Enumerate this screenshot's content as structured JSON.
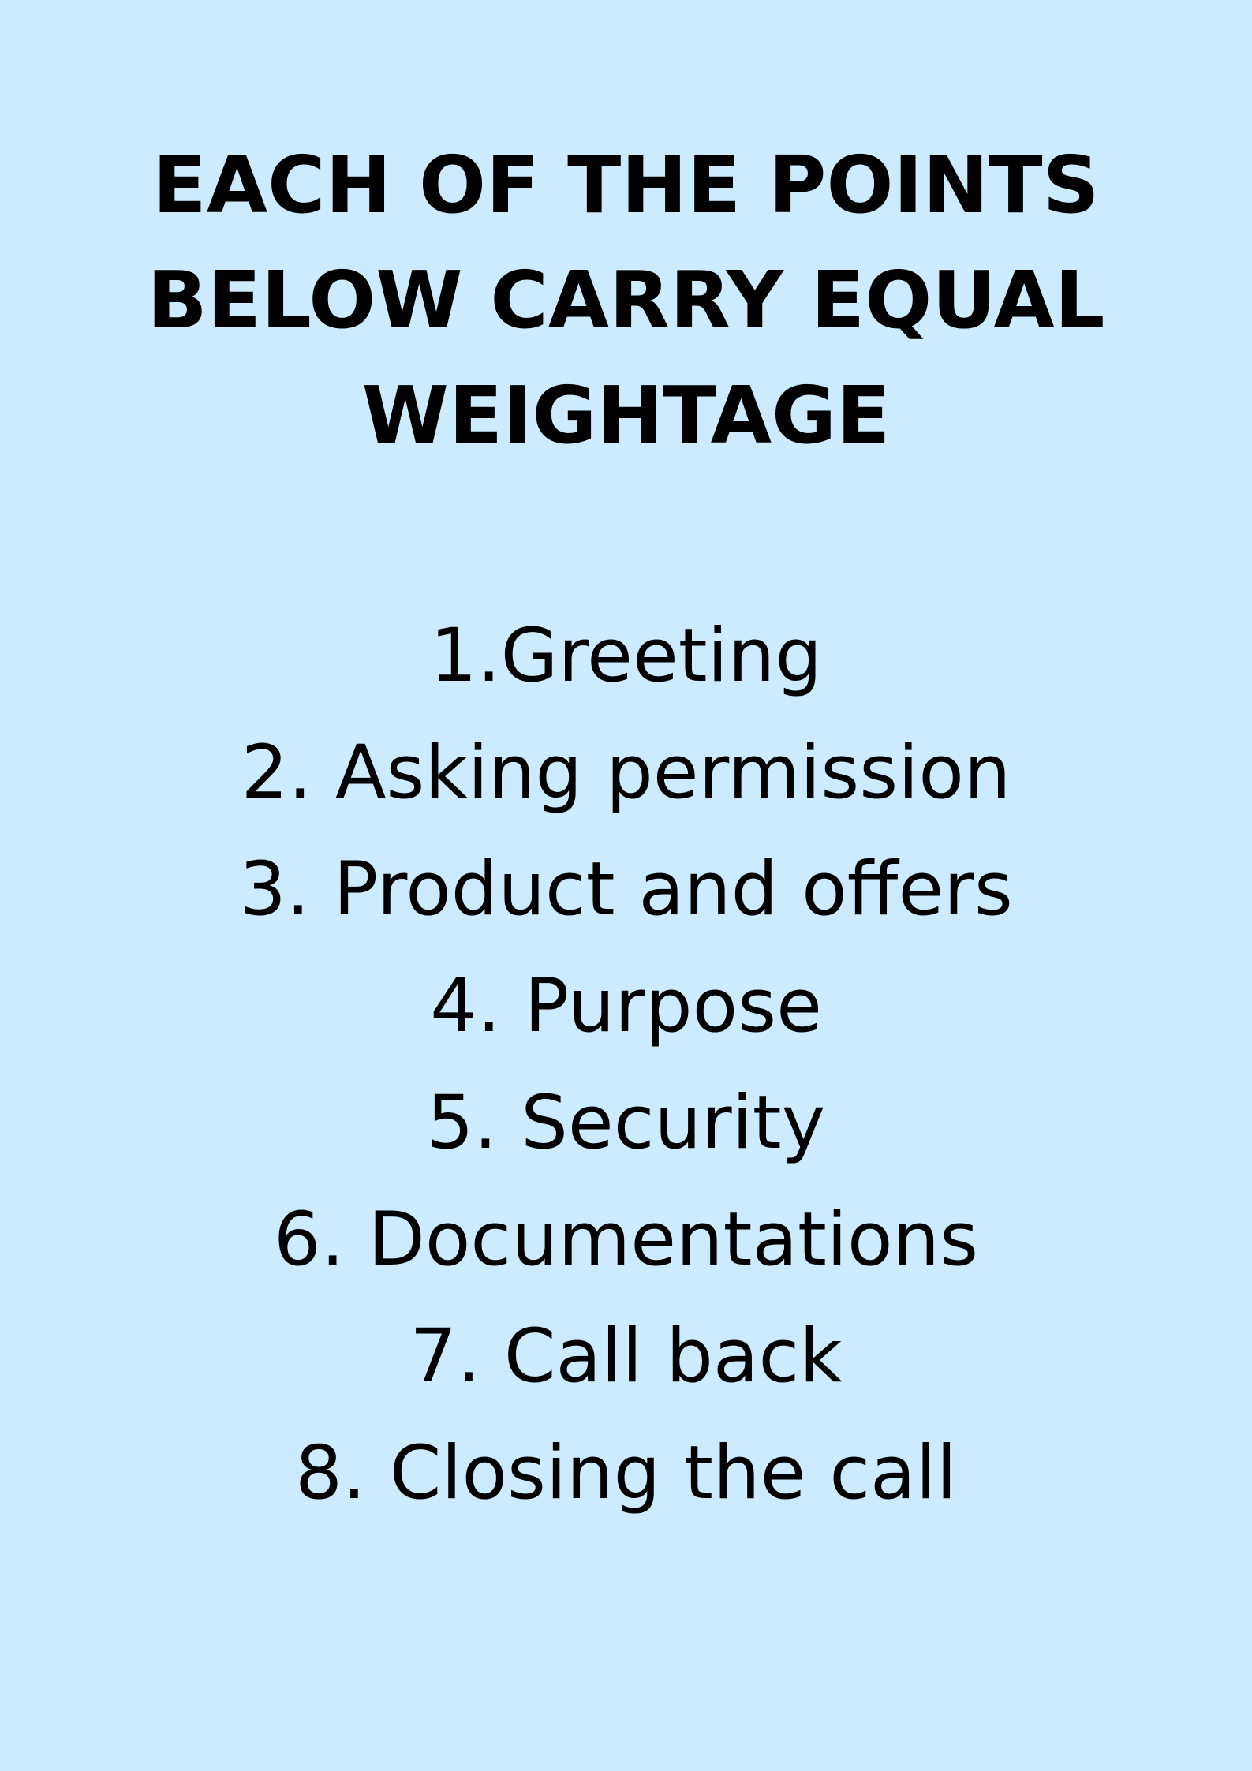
{
  "colors": {
    "background": "#cdebfe",
    "text": "#000000"
  },
  "heading": {
    "lines": [
      "EACH OF THE POINTS",
      "BELOW CARRY EQUAL",
      "WEIGHTAGE"
    ]
  },
  "points": [
    "1.Greeting",
    "2. Asking permission",
    "3. Product and offers",
    "4. Purpose",
    "5. Security",
    "6. Documentations",
    "7. Call back",
    "8. Closing the call"
  ]
}
